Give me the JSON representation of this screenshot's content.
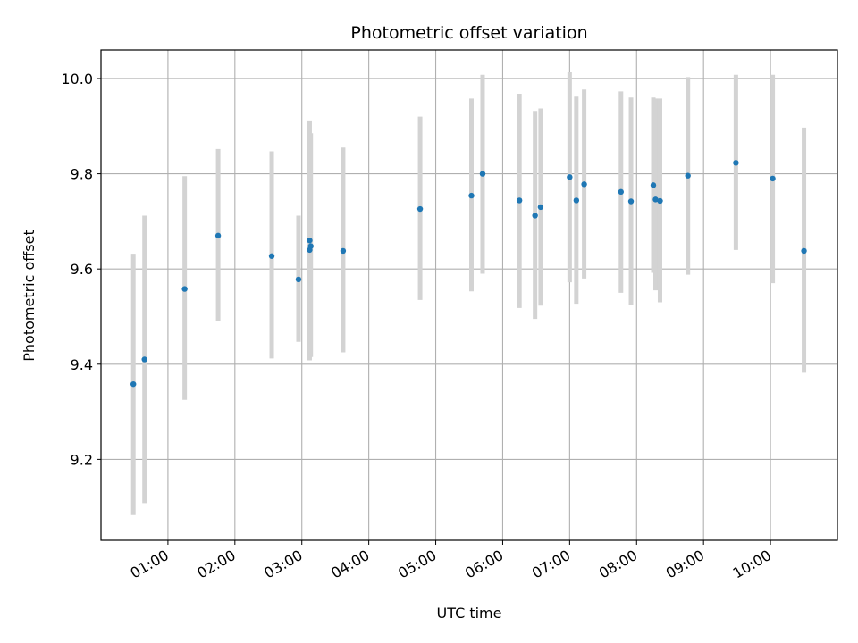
{
  "chart_data": {
    "type": "scatter",
    "title": "Photometric offset variation",
    "xlabel": "UTC time",
    "ylabel": "Photometric offset",
    "xlim": [
      "00:00",
      "11:00"
    ],
    "ylim": [
      9.03,
      10.06
    ],
    "x_ticks": [
      "01:00",
      "02:00",
      "03:00",
      "04:00",
      "05:00",
      "06:00",
      "07:00",
      "08:00",
      "09:00",
      "10:00"
    ],
    "y_ticks": [
      9.2,
      9.4,
      9.6,
      9.8,
      10.0
    ],
    "y_tick_labels": [
      "9.2",
      "9.4",
      "9.6",
      "9.8",
      "10.0"
    ],
    "grid": true,
    "colors": {
      "points": "#1f77b4",
      "errorbars": "#d3d3d3",
      "grid": "#b0b0b0"
    },
    "series": [
      {
        "points": [
          {
            "x": "00:29",
            "y": 9.358,
            "ylow": 9.083,
            "yhigh": 9.632
          },
          {
            "x": "00:39",
            "y": 9.41,
            "ylow": 9.108,
            "yhigh": 9.712
          },
          {
            "x": "01:15",
            "y": 9.558,
            "ylow": 9.325,
            "yhigh": 9.795
          },
          {
            "x": "01:45",
            "y": 9.67,
            "ylow": 9.49,
            "yhigh": 9.852
          },
          {
            "x": "02:33",
            "y": 9.627,
            "ylow": 9.412,
            "yhigh": 9.847
          },
          {
            "x": "02:57",
            "y": 9.578,
            "ylow": 9.447,
            "yhigh": 9.712
          },
          {
            "x": "03:07",
            "y": 9.66,
            "ylow": 9.408,
            "yhigh": 9.912
          },
          {
            "x": "03:08",
            "y": 9.648,
            "ylow": 9.415,
            "yhigh": 9.885
          },
          {
            "x": "03:07",
            "y": 9.64,
            "ylow": 9.415,
            "yhigh": 9.865
          },
          {
            "x": "03:37",
            "y": 9.638,
            "ylow": 9.425,
            "yhigh": 9.855
          },
          {
            "x": "04:46",
            "y": 9.726,
            "ylow": 9.535,
            "yhigh": 9.92
          },
          {
            "x": "05:32",
            "y": 9.754,
            "ylow": 9.553,
            "yhigh": 9.958
          },
          {
            "x": "05:42",
            "y": 9.8,
            "ylow": 9.59,
            "yhigh": 10.008
          },
          {
            "x": "06:15",
            "y": 9.744,
            "ylow": 9.518,
            "yhigh": 9.968
          },
          {
            "x": "06:29",
            "y": 9.712,
            "ylow": 9.495,
            "yhigh": 9.932
          },
          {
            "x": "06:34",
            "y": 9.73,
            "ylow": 9.523,
            "yhigh": 9.937
          },
          {
            "x": "07:00",
            "y": 9.793,
            "ylow": 9.572,
            "yhigh": 10.013
          },
          {
            "x": "07:06",
            "y": 9.744,
            "ylow": 9.527,
            "yhigh": 9.962
          },
          {
            "x": "07:13",
            "y": 9.778,
            "ylow": 9.58,
            "yhigh": 9.977
          },
          {
            "x": "07:46",
            "y": 9.762,
            "ylow": 9.55,
            "yhigh": 9.973
          },
          {
            "x": "07:55",
            "y": 9.742,
            "ylow": 9.525,
            "yhigh": 9.96
          },
          {
            "x": "08:15",
            "y": 9.776,
            "ylow": 9.592,
            "yhigh": 9.96
          },
          {
            "x": "08:17",
            "y": 9.746,
            "ylow": 9.555,
            "yhigh": 9.958
          },
          {
            "x": "08:21",
            "y": 9.743,
            "ylow": 9.53,
            "yhigh": 9.958
          },
          {
            "x": "08:46",
            "y": 9.796,
            "ylow": 9.588,
            "yhigh": 10.003
          },
          {
            "x": "09:29",
            "y": 9.823,
            "ylow": 9.64,
            "yhigh": 10.008
          },
          {
            "x": "10:02",
            "y": 9.79,
            "ylow": 9.57,
            "yhigh": 10.008
          },
          {
            "x": "10:30",
            "y": 9.638,
            "ylow": 9.382,
            "yhigh": 9.897
          }
        ]
      }
    ]
  }
}
